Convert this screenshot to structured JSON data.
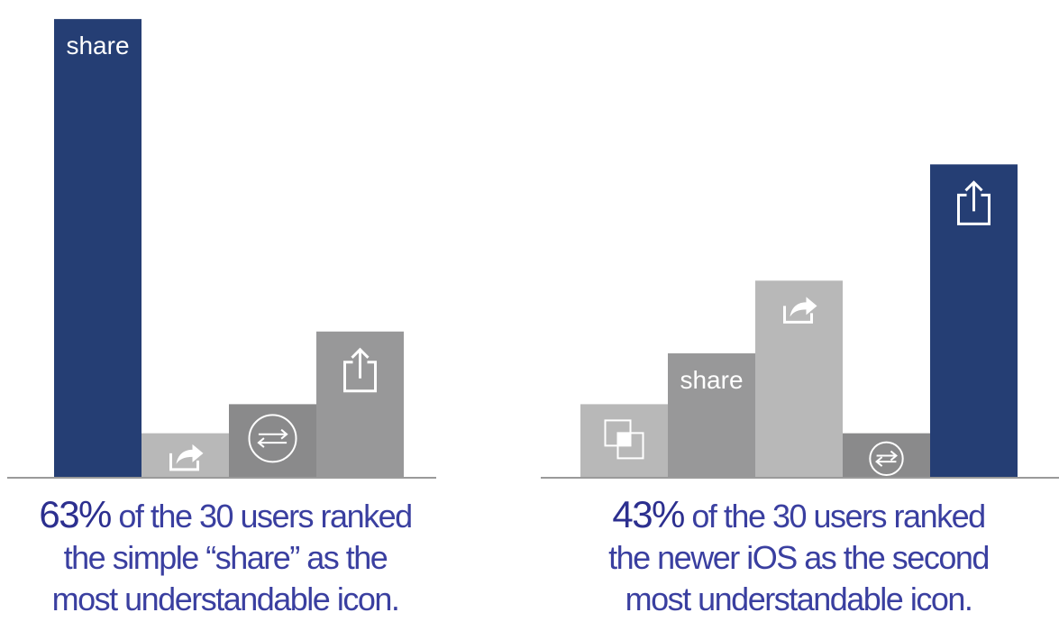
{
  "colors": {
    "highlight": "#253e74",
    "gray_light": "#b8b8b8",
    "gray_mid": "#989899",
    "gray_dark": "#8a8a8b",
    "axis": "#9a9a9a",
    "caption_text": "#3a3fa0"
  },
  "chart_data": [
    {
      "type": "bar",
      "categories": [
        "share",
        "share-arrow-icon",
        "swap-arrows-icon",
        "ios-share-icon"
      ],
      "series": [
        {
          "values": [
            63,
            6,
            10,
            20
          ]
        }
      ],
      "ylim": [
        0,
        65
      ],
      "highlight_index": 0,
      "bar_colors": [
        "#253e74",
        "#b8b8b8",
        "#8a8a8b",
        "#989899"
      ],
      "grid": false
    },
    {
      "type": "bar",
      "categories": [
        "duplicate-squares-icon",
        "share",
        "share-arrow-icon",
        "swap-arrows-icon",
        "ios-share-icon"
      ],
      "series": [
        {
          "values": [
            10,
            17,
            27,
            6,
            43
          ]
        }
      ],
      "ylim": [
        0,
        65
      ],
      "highlight_index": 4,
      "bar_colors": [
        "#b8b8b8",
        "#989899",
        "#b8b8b8",
        "#8a8a8b",
        "#253e74"
      ],
      "grid": false
    }
  ],
  "captions": [
    {
      "pct": "63%",
      "line1": " of the 30 users  ranked",
      "line2": "the simple “share” as the",
      "line3": "most understandable icon."
    },
    {
      "pct": "43%",
      "line1": " of the 30 users ranked",
      "line2": "the newer iOS as the second",
      "line3": "most understandable icon."
    }
  ]
}
